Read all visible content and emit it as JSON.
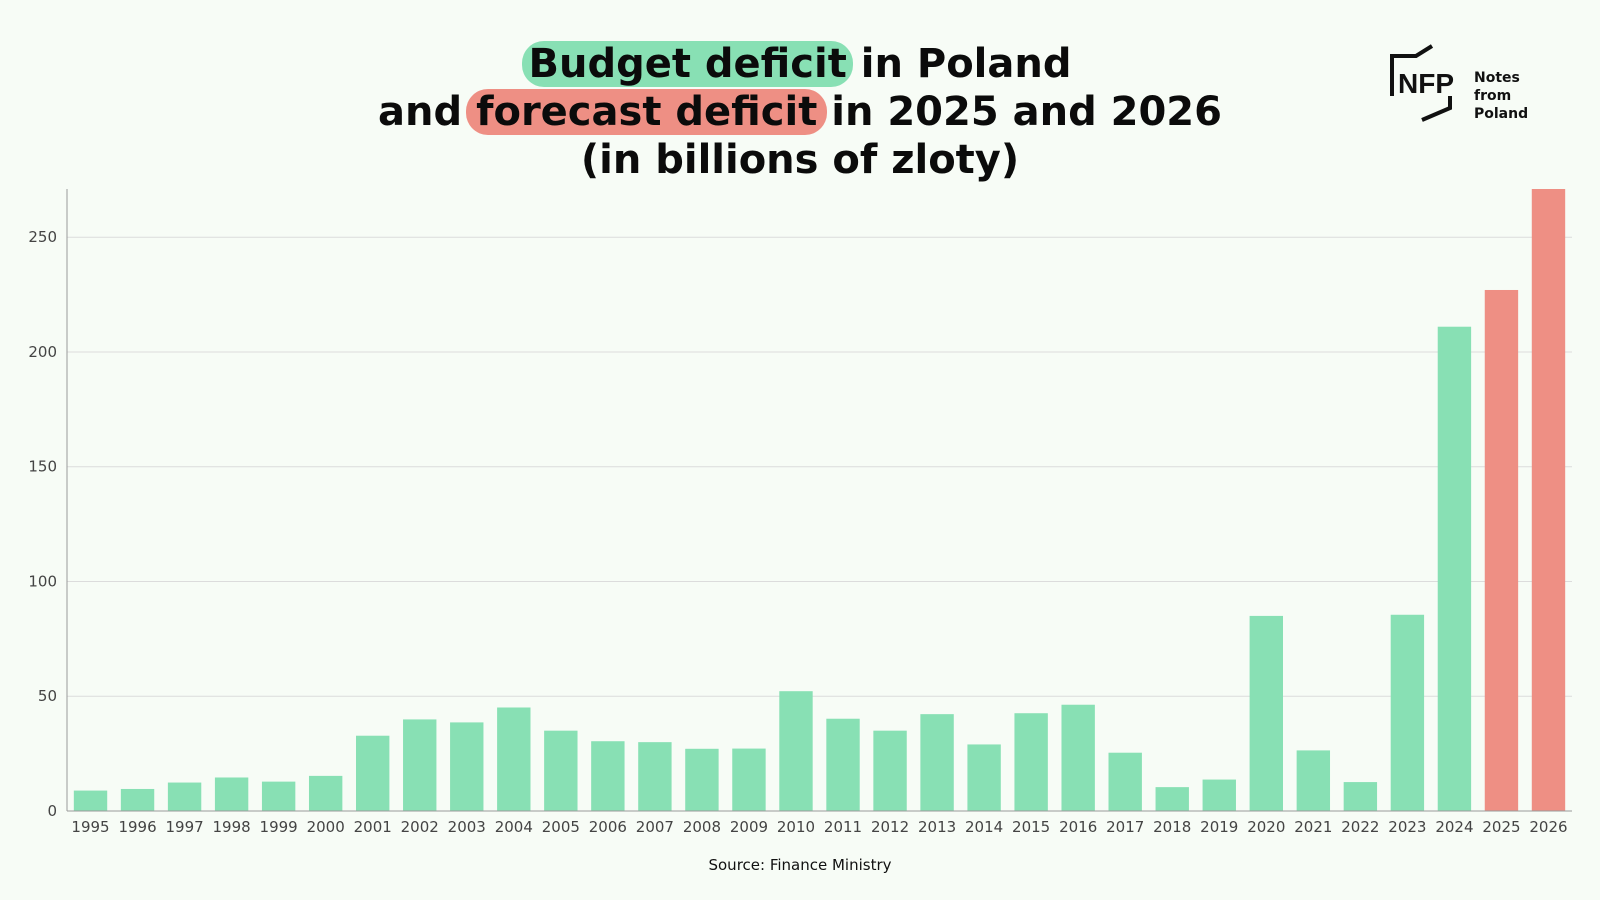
{
  "title": {
    "line1_highlight": "Budget deficit",
    "line1_rest": " in Poland",
    "line2_start": "and ",
    "line2_highlight": "forecast deficit",
    "line2_rest": " in 2025 and 2026",
    "line3": "(in billions of zloty)"
  },
  "logo": {
    "mark": "NFP",
    "line1": "Notes from",
    "line2": "Poland"
  },
  "source": "Source: Finance Ministry",
  "colors": {
    "actual": "#88e0b4",
    "forecast": "#ee8f84",
    "grid": "#dcdcdc",
    "axis": "#9a9a9a",
    "background": "#f7fcf6"
  },
  "chart_data": {
    "type": "bar",
    "categories": [
      "1995",
      "1996",
      "1997",
      "1998",
      "1999",
      "2000",
      "2001",
      "2002",
      "2003",
      "2004",
      "2005",
      "2006",
      "2007",
      "2008",
      "2009",
      "2010",
      "2011",
      "2012",
      "2013",
      "2014",
      "2015",
      "2016",
      "2017",
      "2018",
      "2019",
      "2020",
      "2021",
      "2022",
      "2023",
      "2024",
      "2025",
      "2026"
    ],
    "values": [
      8.9,
      9.6,
      12.4,
      14.6,
      12.8,
      15.3,
      32.8,
      39.9,
      38.6,
      45.1,
      35.0,
      30.4,
      30.0,
      27.1,
      27.2,
      52.2,
      40.2,
      35.0,
      42.2,
      29.0,
      42.6,
      46.3,
      25.4,
      10.4,
      13.7,
      85.0,
      26.4,
      12.6,
      85.5,
      211.0,
      227.0,
      271.0
    ],
    "forecast": [
      false,
      false,
      false,
      false,
      false,
      false,
      false,
      false,
      false,
      false,
      false,
      false,
      false,
      false,
      false,
      false,
      false,
      false,
      false,
      false,
      false,
      false,
      false,
      false,
      false,
      false,
      false,
      false,
      false,
      false,
      true,
      true
    ],
    "yticks": [
      0,
      50,
      100,
      150,
      200,
      250
    ],
    "ylim": [
      0,
      271
    ],
    "grid": true,
    "title": "Budget deficit in Poland and forecast deficit in 2025 and 2026 (in billions of zloty)",
    "xlabel": "",
    "ylabel": ""
  }
}
